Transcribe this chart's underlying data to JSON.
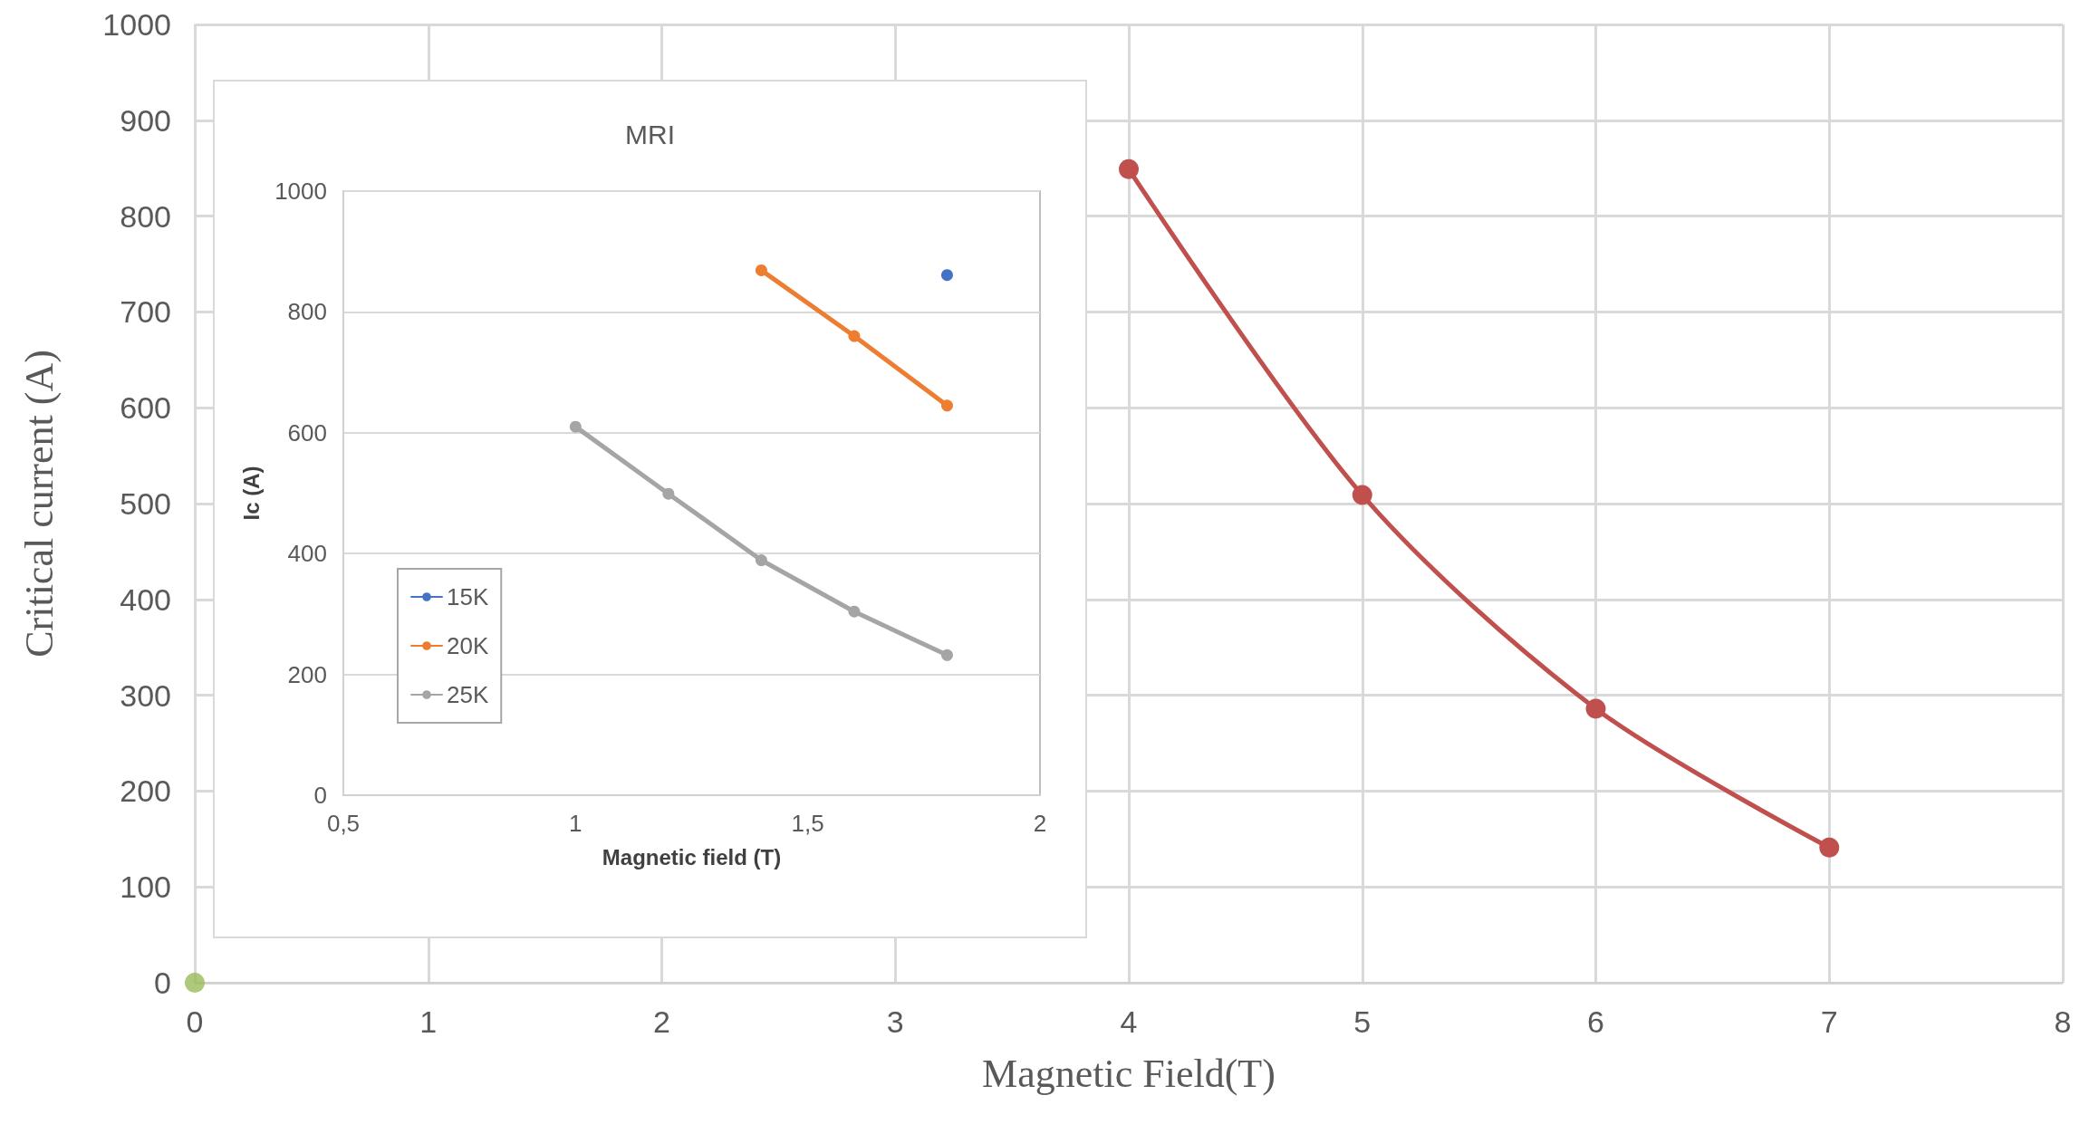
{
  "chart_data": [
    {
      "type": "line",
      "xlabel": "Magnetic Field(T)",
      "ylabel": "Critical current (A)",
      "xlim": [
        0,
        8
      ],
      "xticks": [
        0,
        1,
        2,
        3,
        4,
        5,
        6,
        7,
        8
      ],
      "ylim": [
        0,
        1000
      ],
      "yticks": [
        0,
        100,
        200,
        300,
        400,
        500,
        600,
        700,
        800,
        900,
        1000
      ],
      "grid": true,
      "marker": "circle",
      "legend": false,
      "series": [
        {
          "type": "scatter",
          "color": "#9bbb59",
          "x": [
            0
          ],
          "values": [
            0
          ]
        },
        {
          "color": "#c0504d",
          "x": [
            4,
            5,
            6,
            7
          ],
          "values": [
            849,
            509,
            286,
            141
          ]
        }
      ]
    },
    {
      "type": "line",
      "title": "MRI",
      "xlabel": "Magnetic field (T)",
      "ylabel": "Ic (A)",
      "xlim": [
        0.5,
        2
      ],
      "xticks": [
        {
          "value": 0.5,
          "label": "0,5"
        },
        1,
        {
          "value": 1.5,
          "label": "1,5"
        },
        2
      ],
      "ylim": [
        0,
        1000
      ],
      "yticks": [
        0,
        200,
        400,
        600,
        800,
        1000
      ],
      "grid": "y",
      "marker": "circle",
      "legend": "left",
      "series": [
        {
          "name": "15K",
          "color": "#4472c4",
          "x": [
            1.8
          ],
          "values": [
            861
          ]
        },
        {
          "name": "20K",
          "color": "#ed7d31",
          "x": [
            1.4,
            1.6,
            1.8
          ],
          "values": [
            869,
            760,
            645
          ]
        },
        {
          "name": "25K",
          "color": "#a5a5a5",
          "x": [
            1,
            1.2,
            1.4,
            1.6,
            1.8
          ],
          "values": [
            610,
            499,
            389,
            304,
            232
          ]
        }
      ]
    }
  ]
}
